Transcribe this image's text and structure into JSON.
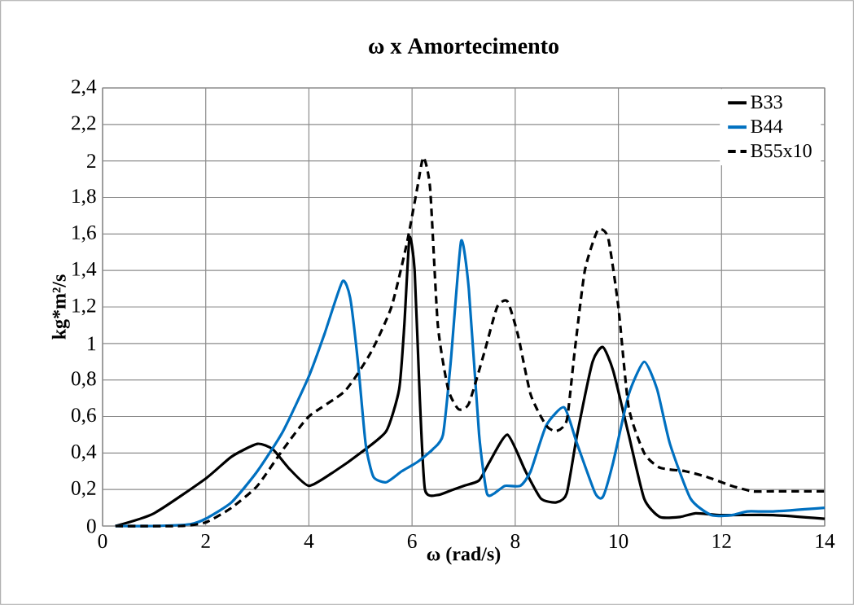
{
  "chart_data": {
    "type": "line",
    "title": "ω x Amortecimento",
    "xlabel": "ω (rad/s)",
    "ylabel": "kg*m²/s",
    "xlim": [
      0,
      14
    ],
    "xticks": [
      0,
      2,
      4,
      6,
      8,
      10,
      12,
      14
    ],
    "ylim": [
      0,
      2.4
    ],
    "yticks": [
      0,
      {
        "value": 0.2,
        "label": "0,2"
      },
      {
        "value": 0.4,
        "label": "0,4"
      },
      {
        "value": 0.6,
        "label": "0,6"
      },
      {
        "value": 0.8,
        "label": "0,8"
      },
      1,
      {
        "value": 1.2,
        "label": "1,2"
      },
      {
        "value": 1.4,
        "label": "1,4"
      },
      {
        "value": 1.6,
        "label": "1,6"
      },
      {
        "value": 1.8,
        "label": "1,8"
      },
      2,
      {
        "value": 2.2,
        "label": "2,2"
      },
      {
        "value": 2.4,
        "label": "2,4"
      }
    ],
    "grid": true,
    "legend": "top right",
    "marker": "none",
    "series": [
      {
        "name": "B33",
        "color": "#000000",
        "line_style": "solid",
        "x": [
          0.25,
          1,
          2,
          2.5,
          3,
          3.3,
          3.6,
          4,
          4.5,
          5,
          5.5,
          5.75,
          5.85,
          5.95,
          6.05,
          6.15,
          6.25,
          6.5,
          6.8,
          7,
          7.3,
          7.5,
          7.85,
          8.2,
          8.5,
          8.8,
          9.0,
          9.2,
          9.5,
          9.7,
          9.9,
          10.2,
          10.5,
          10.8,
          11.2,
          11.5,
          12,
          13,
          14
        ],
        "values": [
          0,
          0.07,
          0.26,
          0.38,
          0.45,
          0.42,
          0.32,
          0.22,
          0.3,
          0.4,
          0.52,
          0.75,
          1.1,
          1.58,
          1.4,
          0.7,
          0.2,
          0.17,
          0.2,
          0.22,
          0.25,
          0.35,
          0.5,
          0.3,
          0.15,
          0.13,
          0.18,
          0.5,
          0.9,
          0.98,
          0.85,
          0.5,
          0.15,
          0.05,
          0.05,
          0.07,
          0.06,
          0.06,
          0.04
        ]
      },
      {
        "name": "B44",
        "color": "#0070c0",
        "line_style": "solid",
        "x": [
          0.25,
          1,
          1.7,
          2,
          2.5,
          3,
          3.5,
          4,
          4.3,
          4.65,
          4.8,
          4.95,
          5.1,
          5.25,
          5.5,
          5.8,
          6.1,
          6.4,
          6.6,
          6.75,
          6.95,
          7.1,
          7.3,
          7.45,
          7.6,
          7.8,
          8.1,
          8.3,
          8.6,
          8.95,
          9.2,
          9.55,
          9.7,
          9.9,
          10.2,
          10.5,
          10.75,
          11,
          11.4,
          11.8,
          12.2,
          12.5,
          13,
          14
        ],
        "values": [
          0,
          0,
          0.01,
          0.04,
          0.13,
          0.3,
          0.52,
          0.82,
          1.05,
          1.34,
          1.25,
          0.9,
          0.45,
          0.27,
          0.24,
          0.3,
          0.35,
          0.42,
          0.5,
          0.9,
          1.56,
          1.3,
          0.5,
          0.18,
          0.18,
          0.22,
          0.22,
          0.3,
          0.55,
          0.65,
          0.45,
          0.18,
          0.16,
          0.35,
          0.72,
          0.9,
          0.75,
          0.45,
          0.15,
          0.06,
          0.06,
          0.08,
          0.08,
          0.1
        ]
      },
      {
        "name": "B55x10",
        "color": "#000000",
        "line_style": "dashed",
        "x": [
          0.25,
          1.5,
          2,
          2.5,
          3,
          3.5,
          4,
          4.7,
          5.2,
          5.6,
          5.9,
          6.1,
          6.22,
          6.35,
          6.5,
          6.7,
          6.9,
          7.1,
          7.4,
          7.65,
          7.85,
          8.05,
          8.3,
          8.6,
          8.8,
          9.0,
          9.15,
          9.35,
          9.6,
          9.8,
          10.0,
          10.2,
          10.5,
          10.8,
          11.3,
          11.7,
          12.2,
          12.6,
          13,
          14
        ],
        "values": [
          0,
          0,
          0.02,
          0.1,
          0.22,
          0.42,
          0.6,
          0.74,
          0.95,
          1.2,
          1.55,
          1.85,
          2.02,
          1.85,
          1.1,
          0.75,
          0.64,
          0.67,
          0.95,
          1.2,
          1.23,
          1.05,
          0.72,
          0.55,
          0.52,
          0.58,
          0.95,
          1.4,
          1.62,
          1.58,
          1.2,
          0.65,
          0.4,
          0.32,
          0.3,
          0.27,
          0.22,
          0.19,
          0.19,
          0.19
        ]
      }
    ]
  }
}
